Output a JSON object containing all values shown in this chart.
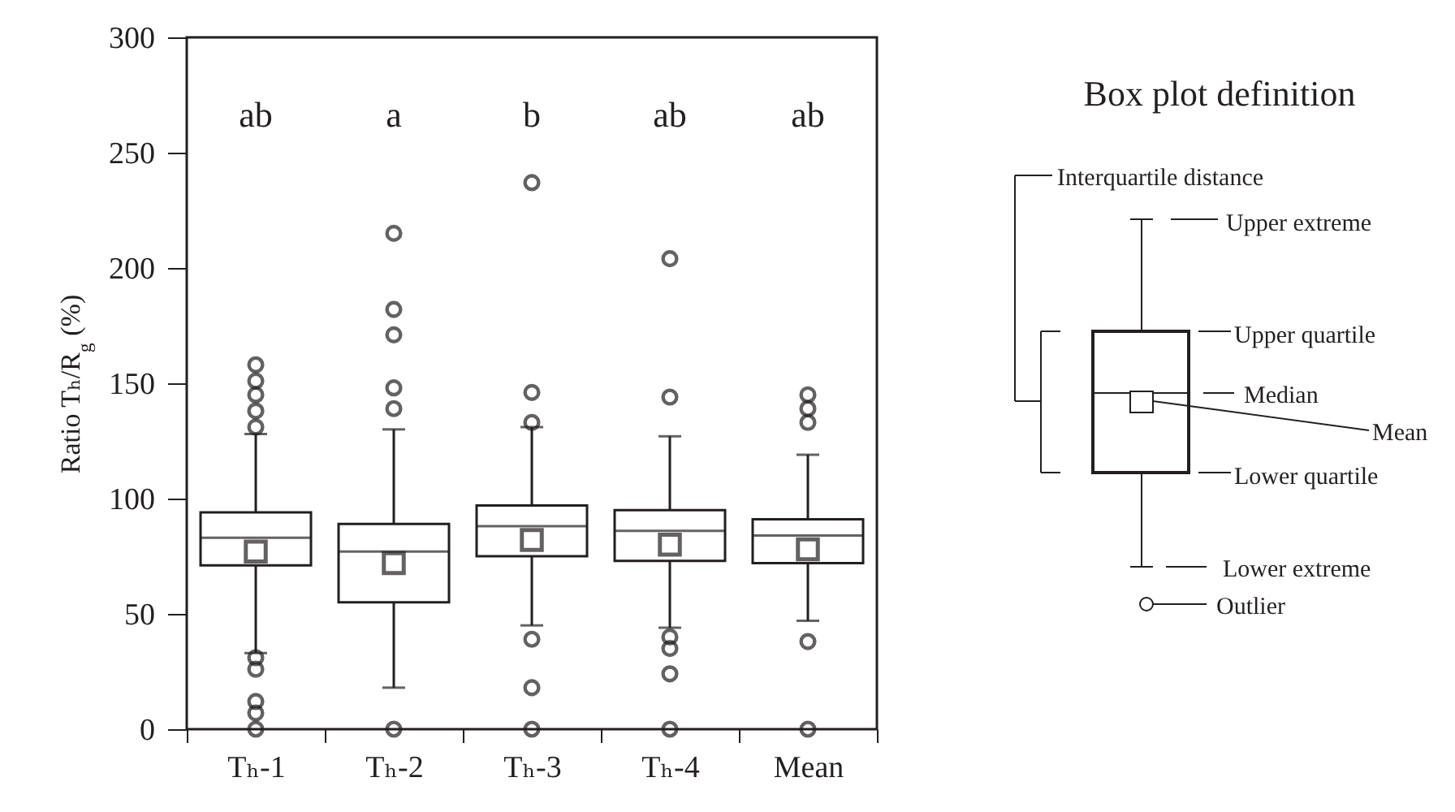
{
  "chart_data": {
    "type": "box",
    "ylabel": "Ratio Tₕ/R$_{g}$ (%)",
    "categories": [
      "Tₕ-1",
      "Tₕ-2",
      "Tₕ-3",
      "Tₕ-4",
      "Mean"
    ],
    "boxes": [
      {
        "low": 33,
        "q1": 71,
        "median": 83,
        "q3": 94,
        "high": 128,
        "mean": 77,
        "outliers": [
          158,
          151,
          145,
          138,
          131,
          31,
          26,
          12,
          7,
          0
        ]
      },
      {
        "low": 18,
        "q1": 55,
        "median": 77,
        "q3": 89,
        "high": 130,
        "mean": 72,
        "outliers": [
          215,
          182,
          171,
          148,
          139,
          0
        ]
      },
      {
        "low": 45,
        "q1": 75,
        "median": 88,
        "q3": 97,
        "high": 131,
        "mean": 82,
        "outliers": [
          237,
          146,
          133,
          39,
          18,
          0
        ]
      },
      {
        "low": 44,
        "q1": 73,
        "median": 86,
        "q3": 95,
        "high": 127,
        "mean": 80,
        "outliers": [
          204,
          144,
          40,
          35,
          24,
          0
        ]
      },
      {
        "low": 47,
        "q1": 72,
        "median": 84,
        "q3": 91,
        "high": 119,
        "mean": 78,
        "outliers": [
          145,
          139,
          133,
          38,
          0
        ]
      }
    ],
    "ylim": [
      0,
      300
    ],
    "yticks": [
      0,
      50,
      100,
      150,
      200,
      250,
      300
    ],
    "annotations": [
      "ab",
      "a",
      "b",
      "ab",
      "ab",
      "Box plot definition",
      "Interquartile  distance",
      "Upper extreme",
      "Upper  quartile",
      "Median",
      "Mean",
      "Lower  quartile",
      "Lower extreme",
      "Outlier"
    ]
  }
}
